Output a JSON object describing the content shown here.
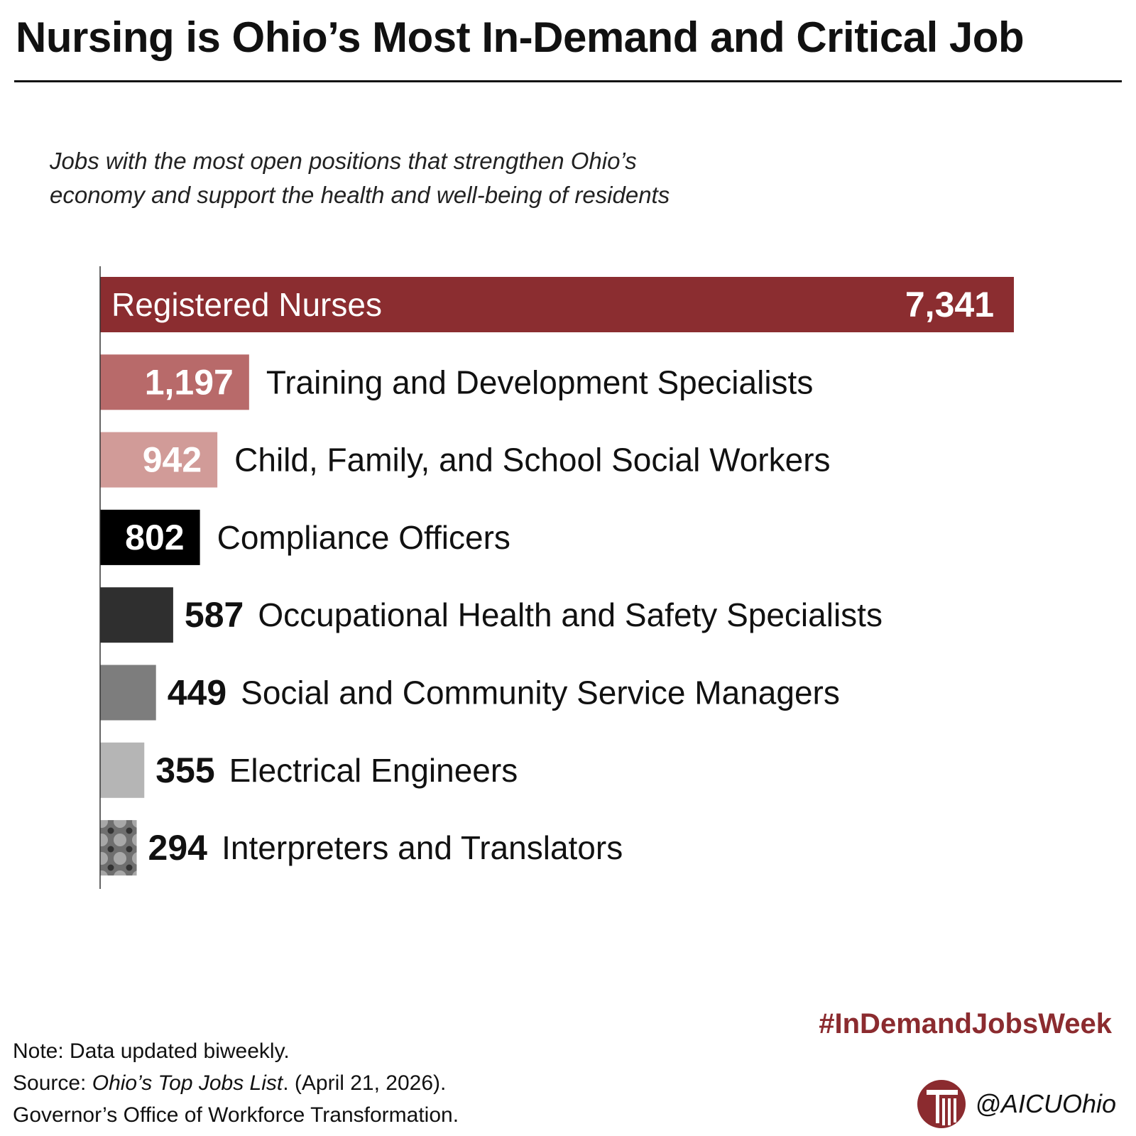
{
  "header": {
    "title": "Nursing is Ohio’s Most In-Demand and Critical Job",
    "subtitle_lines": [
      "Jobs with the most open positions that strengthen Ohio’s",
      "economy and support the health and well-being of residents"
    ]
  },
  "chart_data": {
    "type": "bar",
    "orientation": "horizontal",
    "title": "",
    "xlabel": "",
    "ylabel": "",
    "grid": false,
    "xlim": [
      0,
      7341
    ],
    "categories": [
      "Registered Nurses",
      "Training and Development Specialists",
      "Child, Family, and School Social Workers",
      "Compliance Officers",
      "Occupational Health and Safety Specialists",
      "Social and Community Service Managers",
      "Electrical Engineers",
      "Interpreters and Translators"
    ],
    "values": [
      7341,
      1197,
      942,
      802,
      587,
      449,
      355,
      294
    ],
    "value_labels": [
      "7,341",
      "1,197",
      "942",
      "802",
      "587",
      "449",
      "355",
      "294"
    ],
    "bar_colors": [
      "#8b2d30",
      "#b86a6a",
      "#d19b98",
      "#000000",
      "#2f2f2f",
      "#7d7d7d",
      "#b5b5b5",
      "pattern"
    ]
  },
  "footer": {
    "note": "Note: Data updated biweekly.",
    "source_prefix": "Source: ",
    "source_title": "Ohio’s Top Jobs List",
    "source_suffix": ". (April 21, 2026).",
    "source_org": "Governor’s Office of Workforce Transformation.",
    "hashtag": "#InDemandJobsWeek",
    "handle": "@AICUOhio",
    "logo_icon": "aicu-column-logo-icon"
  },
  "colors": {
    "brand": "#8b2b2f",
    "axis": "#333333",
    "text": "#111111"
  }
}
